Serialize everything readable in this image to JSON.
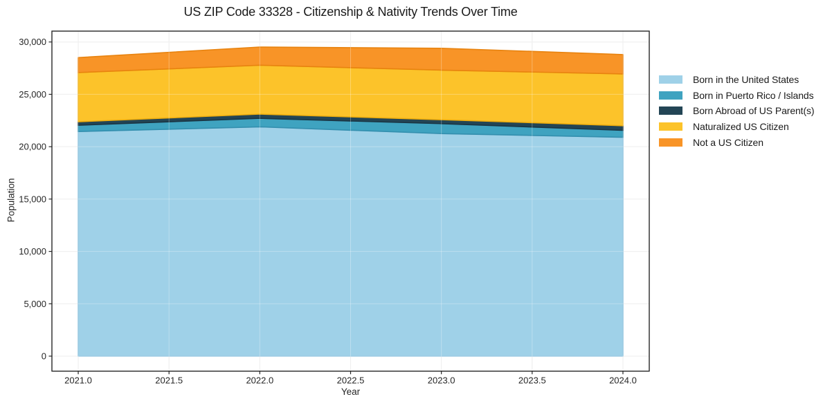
{
  "chart_data": {
    "type": "area",
    "stacked": true,
    "title": "US ZIP Code 33328 - Citizenship & Nativity Trends Over Time",
    "xlabel": "Year",
    "ylabel": "Population",
    "x": [
      2021,
      2022,
      2023,
      2024
    ],
    "series": [
      {
        "name": "Born in the United States",
        "color": "#9fd1e8",
        "edge": "#85bedb",
        "values": [
          21450,
          21900,
          21250,
          20900
        ]
      },
      {
        "name": "Born in Puerto Rico / Islands",
        "color": "#3fa3c0",
        "edge": "#338fae",
        "values": [
          600,
          810,
          950,
          660
        ]
      },
      {
        "name": "Born Abroad of US Parent(s)",
        "color": "#234555",
        "edge": "#1a3543",
        "values": [
          330,
          400,
          380,
          440
        ]
      },
      {
        "name": "Naturalized US Citizen",
        "color": "#fcc32a",
        "edge": "#efae0e",
        "values": [
          4700,
          4670,
          4730,
          4950
        ]
      },
      {
        "name": "Not a US Citizen",
        "color": "#f89427",
        "edge": "#e8830f",
        "values": [
          1430,
          1740,
          2090,
          1850
        ]
      }
    ],
    "xticks": [
      2021.0,
      2021.5,
      2022.0,
      2022.5,
      2023.0,
      2023.5,
      2024.0
    ],
    "xtick_labels": [
      "2021.0",
      "2021.5",
      "2022.0",
      "2022.5",
      "2023.0",
      "2023.5",
      "2024.0"
    ],
    "yticks": [
      0,
      5000,
      10000,
      15000,
      20000,
      25000,
      30000
    ],
    "ytick_labels": [
      "0",
      "5,000",
      "10,000",
      "15,000",
      "20,000",
      "25,000",
      "30,000"
    ],
    "xlim": [
      2020.855,
      2024.145
    ],
    "ylim": [
      -1433,
      31037
    ],
    "grid": true,
    "legend_position": "right",
    "colors": {
      "grid": "#e7e7e7",
      "axis": "#262626",
      "background": "#ffffff"
    }
  }
}
